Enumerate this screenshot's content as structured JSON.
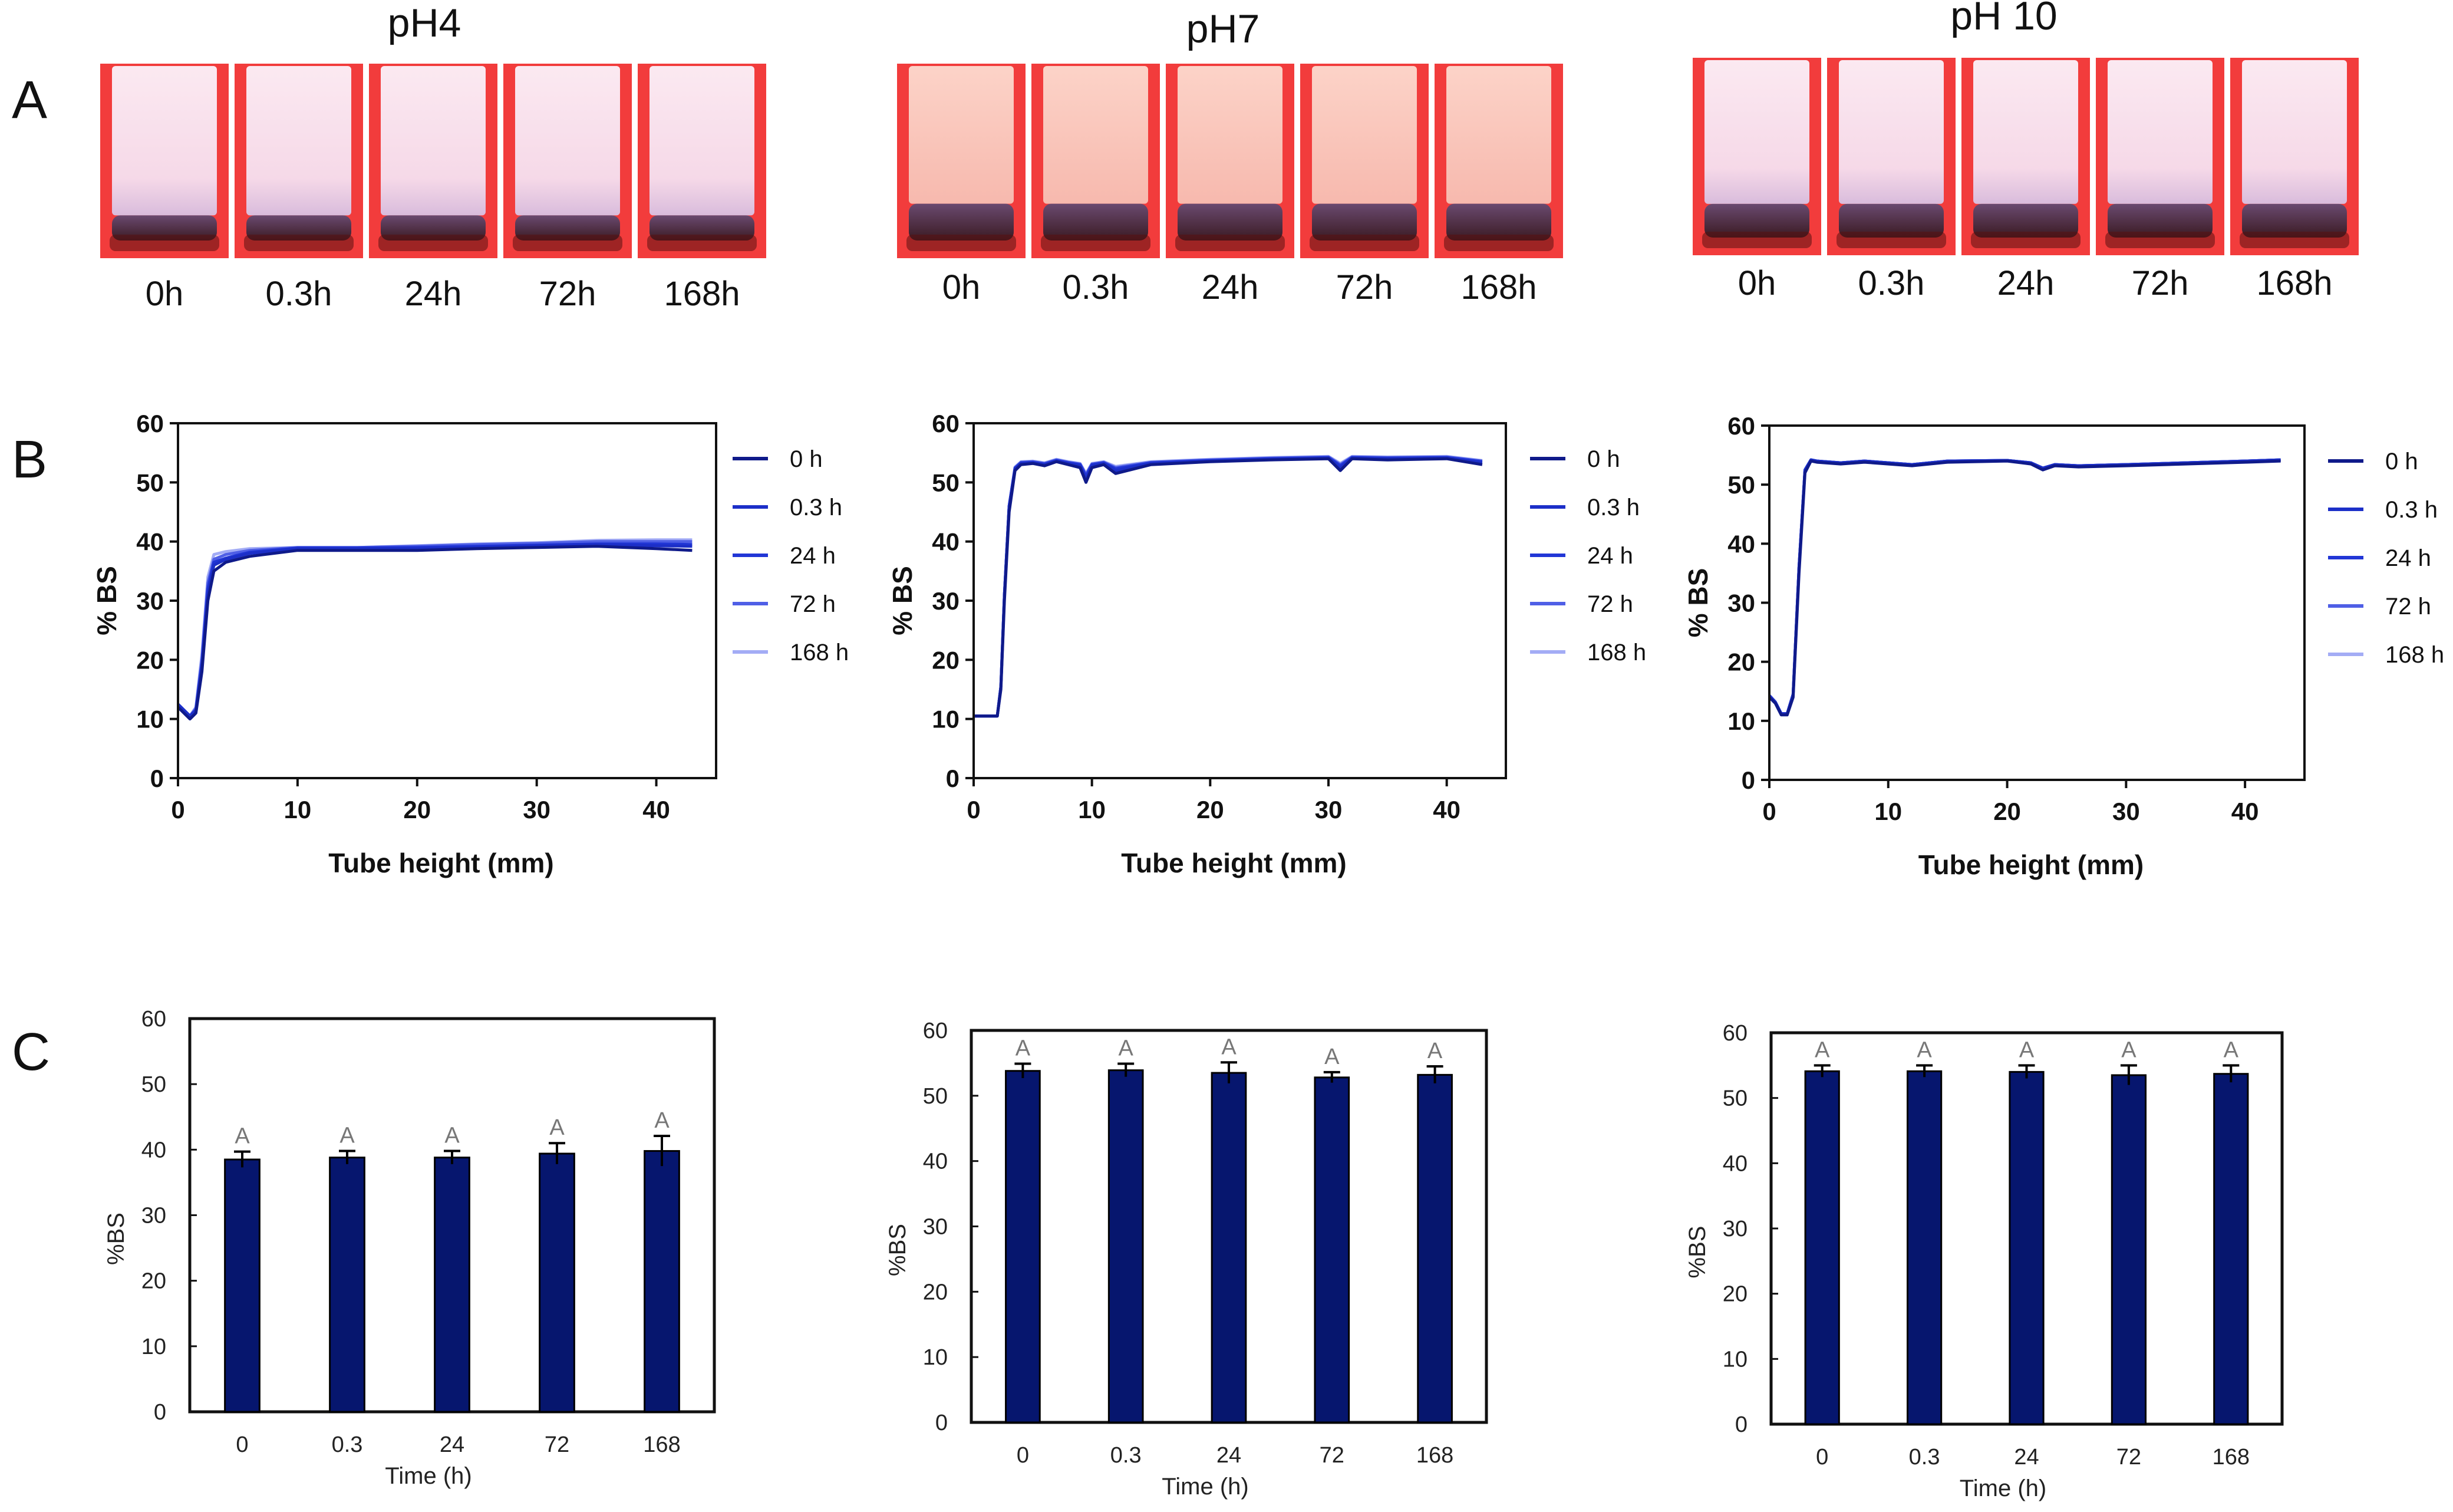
{
  "figure": {
    "row_labels": [
      "A",
      "B",
      "C"
    ],
    "ph_titles": [
      "pH4",
      "pH7",
      "pH 10"
    ],
    "time_labels": [
      "0h",
      "0.3h",
      "24h",
      "72h",
      "168h"
    ]
  },
  "colors": {
    "tube_background": "#f23c3c",
    "bar_fill": "#06166e",
    "legend_series": [
      "#0f1a8a",
      "#1c2fc8",
      "#2136d6",
      "#4f5fe6",
      "#a3acf5"
    ]
  },
  "chart_data": [
    {
      "id": "B1",
      "type": "line",
      "panel": "B",
      "title": "pH4",
      "xlabel": "Tube height (mm)",
      "ylabel": "% BS",
      "xlim": [
        0,
        45
      ],
      "ylim": [
        0,
        60
      ],
      "xticks": [
        0,
        10,
        20,
        30,
        40
      ],
      "yticks": [
        0,
        10,
        20,
        30,
        40,
        50,
        60
      ],
      "legend": [
        "0 h",
        "0.3 h",
        "24 h",
        "72 h",
        "168 h"
      ],
      "series": [
        {
          "name": "0 h",
          "x": [
            0,
            0.5,
            1,
            1.5,
            2,
            2.5,
            3,
            4,
            6,
            10,
            15,
            20,
            25,
            30,
            35,
            40,
            43
          ],
          "y": [
            12,
            11,
            10,
            11,
            18,
            30,
            35,
            36.5,
            37.5,
            38.5,
            38.5,
            38.5,
            38.8,
            39,
            39.2,
            38.8,
            38.5
          ]
        },
        {
          "name": "0.3 h",
          "x": [
            0,
            0.5,
            1,
            1.5,
            2,
            2.5,
            3,
            4,
            6,
            10,
            15,
            20,
            25,
            30,
            35,
            40,
            43
          ],
          "y": [
            12.5,
            11.5,
            10.5,
            11.5,
            19,
            31,
            36,
            37,
            38,
            38.8,
            38.8,
            38.8,
            39,
            39.3,
            39.5,
            39.3,
            39.2
          ]
        },
        {
          "name": "24 h",
          "x": [
            0,
            0.5,
            1,
            1.5,
            2,
            2.5,
            3,
            4,
            6,
            10,
            15,
            20,
            25,
            30,
            35,
            40,
            43
          ],
          "y": [
            12.5,
            11.5,
            10.5,
            11.5,
            19.5,
            32,
            36.5,
            37.2,
            38.2,
            38.9,
            38.9,
            39,
            39.2,
            39.4,
            39.6,
            39.6,
            39.5
          ]
        },
        {
          "name": "72 h",
          "x": [
            0,
            0.5,
            1,
            1.5,
            2,
            2.5,
            3,
            4,
            6,
            10,
            15,
            20,
            25,
            30,
            35,
            40,
            43
          ],
          "y": [
            12.5,
            11.5,
            10.5,
            11.8,
            20,
            33,
            37,
            37.8,
            38.5,
            39,
            39,
            39.2,
            39.5,
            39.7,
            40,
            40,
            40
          ]
        },
        {
          "name": "168 h",
          "x": [
            0,
            0.5,
            1,
            1.5,
            2,
            2.5,
            3,
            4,
            6,
            10,
            15,
            20,
            25,
            30,
            35,
            40,
            43
          ],
          "y": [
            12.5,
            11.5,
            10.5,
            12,
            21,
            34,
            37.8,
            38.3,
            38.8,
            39,
            39,
            39.3,
            39.6,
            39.8,
            40.2,
            40.3,
            40.3
          ]
        }
      ]
    },
    {
      "id": "B2",
      "type": "line",
      "panel": "B",
      "title": "pH7",
      "xlabel": "Tube height (mm)",
      "ylabel": "% BS",
      "xlim": [
        0,
        45
      ],
      "ylim": [
        0,
        60
      ],
      "xticks": [
        0,
        10,
        20,
        30,
        40
      ],
      "yticks": [
        0,
        10,
        20,
        30,
        40,
        50,
        60
      ],
      "legend": [
        "0 h",
        "0.3 h",
        "24 h",
        "72 h",
        "168 h"
      ],
      "series": [
        {
          "name": "0 h",
          "x": [
            0,
            1,
            2,
            2.3,
            2.6,
            3,
            3.5,
            4,
            5,
            6,
            7,
            8,
            9,
            9.5,
            10,
            11,
            12,
            15,
            20,
            25,
            30,
            31,
            32,
            35,
            40,
            43
          ],
          "y": [
            10.5,
            10.5,
            10.5,
            15,
            30,
            45,
            52,
            53,
            53.2,
            52.8,
            53.5,
            53,
            52.5,
            50,
            52.5,
            53,
            51.5,
            53,
            53.5,
            53.8,
            54,
            52,
            54,
            53.8,
            54,
            53
          ]
        },
        {
          "name": "0.3 h",
          "x": [
            0,
            1,
            2,
            2.3,
            2.6,
            3,
            3.5,
            4,
            5,
            6,
            7,
            8,
            9,
            9.5,
            10,
            11,
            12,
            15,
            20,
            25,
            30,
            31,
            32,
            35,
            40,
            43
          ],
          "y": [
            10.5,
            10.5,
            10.5,
            15.5,
            31,
            46,
            52.3,
            53.2,
            53.3,
            53,
            53.6,
            53.2,
            52.8,
            50.5,
            52.8,
            53.2,
            52,
            53.2,
            53.6,
            53.9,
            54.1,
            52.5,
            54.1,
            54,
            54.1,
            53.3
          ]
        },
        {
          "name": "24 h",
          "x": [
            0,
            1,
            2,
            2.3,
            2.6,
            3,
            3.5,
            4,
            5,
            6,
            7,
            8,
            9,
            9.5,
            10,
            11,
            12,
            15,
            20,
            25,
            30,
            31,
            32,
            35,
            40,
            43
          ],
          "y": [
            10.5,
            10.5,
            10.5,
            15.5,
            31,
            46,
            52.4,
            53.3,
            53.4,
            53.1,
            53.7,
            53.3,
            53,
            51,
            53,
            53.3,
            52.3,
            53.3,
            53.7,
            54,
            54.2,
            52.8,
            54.2,
            54.1,
            54.2,
            53.5
          ]
        },
        {
          "name": "72 h",
          "x": [
            0,
            1,
            2,
            2.3,
            2.6,
            3,
            3.5,
            4,
            5,
            6,
            7,
            8,
            9,
            9.5,
            10,
            11,
            12,
            15,
            20,
            25,
            30,
            31,
            32,
            35,
            40,
            43
          ],
          "y": [
            10.5,
            10.5,
            10.5,
            15.5,
            31,
            46,
            52.5,
            53.4,
            53.5,
            53.2,
            53.8,
            53.4,
            53.1,
            51.3,
            53.1,
            53.4,
            52.5,
            53.4,
            53.8,
            54.1,
            54.3,
            53,
            54.3,
            54.2,
            54.3,
            53.6
          ]
        },
        {
          "name": "168 h",
          "x": [
            0,
            1,
            2,
            2.3,
            2.6,
            3,
            3.5,
            4,
            5,
            6,
            7,
            8,
            9,
            9.5,
            10,
            11,
            12,
            15,
            20,
            25,
            30,
            31,
            32,
            35,
            40,
            43
          ],
          "y": [
            10.5,
            10.5,
            10.5,
            15.5,
            31,
            46,
            52.6,
            53.5,
            53.6,
            53.3,
            53.9,
            53.5,
            53.2,
            51.5,
            53.2,
            53.5,
            52.7,
            53.5,
            53.9,
            54.2,
            54.4,
            53.2,
            54.4,
            54.3,
            54.4,
            53.7
          ]
        }
      ]
    },
    {
      "id": "B3",
      "type": "line",
      "panel": "B",
      "title": "pH 10",
      "xlabel": "Tube height (mm)",
      "ylabel": "% BS",
      "xlim": [
        0,
        45
      ],
      "ylim": [
        0,
        60
      ],
      "xticks": [
        0,
        10,
        20,
        30,
        40
      ],
      "yticks": [
        0,
        10,
        20,
        30,
        40,
        50,
        60
      ],
      "legend": [
        "0 h",
        "0.3 h",
        "24 h",
        "72 h",
        "168 h"
      ],
      "series": [
        {
          "name": "0 h",
          "x": [
            0,
            0.5,
            1,
            1.5,
            2,
            2.5,
            3,
            3.5,
            4,
            6,
            8,
            10,
            12,
            15,
            20,
            22,
            23,
            24,
            26,
            30,
            35,
            40,
            43
          ],
          "y": [
            14,
            13,
            11,
            11,
            14,
            35,
            52,
            54,
            53.8,
            53.5,
            53.8,
            53.5,
            53.2,
            53.8,
            54,
            53.5,
            52.5,
            53.2,
            53,
            53.2,
            53.5,
            53.8,
            54
          ]
        },
        {
          "name": "0.3 h",
          "x": [
            0,
            0.5,
            1,
            1.5,
            2,
            2.5,
            3,
            3.5,
            4,
            6,
            8,
            10,
            12,
            15,
            20,
            22,
            23,
            24,
            26,
            30,
            35,
            40,
            43
          ],
          "y": [
            14.3,
            13.2,
            11.2,
            11.2,
            14.5,
            36,
            52.5,
            54.2,
            54,
            53.7,
            54,
            53.7,
            53.4,
            54,
            54.1,
            53.7,
            52.8,
            53.4,
            53.2,
            53.4,
            53.7,
            54,
            54.2
          ]
        },
        {
          "name": "24 h",
          "x": [
            0,
            0.5,
            1,
            1.5,
            2,
            2.5,
            3,
            3.5,
            4,
            6,
            8,
            10,
            12,
            15,
            20,
            22,
            23,
            24,
            26,
            30,
            35,
            40,
            43
          ],
          "y": [
            14.3,
            13.2,
            11.2,
            11.2,
            14.5,
            36,
            52.5,
            54.2,
            54,
            53.7,
            54,
            53.7,
            53.4,
            54,
            54.1,
            53.7,
            52.8,
            53.4,
            53.2,
            53.4,
            53.7,
            54,
            54.2
          ]
        },
        {
          "name": "72 h",
          "x": [
            0,
            0.5,
            1,
            1.5,
            2,
            2.5,
            3,
            3.5,
            4,
            6,
            8,
            10,
            12,
            15,
            20,
            22,
            23,
            24,
            26,
            30,
            35,
            40,
            43
          ],
          "y": [
            14.3,
            13.2,
            11.2,
            11.2,
            14.5,
            36,
            52.5,
            54.2,
            54,
            53.7,
            54,
            53.7,
            53.4,
            54,
            54.1,
            53.7,
            52.8,
            53.4,
            53.2,
            53.4,
            53.7,
            54,
            54.2
          ]
        },
        {
          "name": "168 h",
          "x": [
            0,
            0.5,
            1,
            1.5,
            2,
            2.5,
            3,
            3.5,
            4,
            6,
            8,
            10,
            12,
            15,
            20,
            22,
            23,
            24,
            26,
            30,
            35,
            40,
            43
          ],
          "y": [
            14.3,
            13.2,
            11.2,
            11.2,
            14.5,
            36,
            52.5,
            54.2,
            54,
            53.7,
            54,
            53.7,
            53.4,
            54,
            54.1,
            53.7,
            52.8,
            53.4,
            53.2,
            53.4,
            53.7,
            54,
            54.2
          ]
        }
      ]
    },
    {
      "id": "C1",
      "type": "bar",
      "panel": "C",
      "title": "pH4",
      "xlabel": "Time (h)",
      "ylabel": "%BS",
      "ylim": [
        0,
        60
      ],
      "yticks": [
        0,
        10,
        20,
        30,
        40,
        50,
        60
      ],
      "categories": [
        "0",
        "0.3",
        "24",
        "72",
        "168"
      ],
      "values": [
        38.5,
        38.8,
        38.8,
        39.4,
        39.8
      ],
      "errors": [
        1.2,
        1.0,
        1.0,
        1.6,
        2.3
      ],
      "letters": [
        "A",
        "A",
        "A",
        "A",
        "A"
      ]
    },
    {
      "id": "C2",
      "type": "bar",
      "panel": "C",
      "title": "pH7",
      "xlabel": "Time (h)",
      "ylabel": "%BS",
      "ylim": [
        0,
        60
      ],
      "yticks": [
        0,
        10,
        20,
        30,
        40,
        50,
        60
      ],
      "categories": [
        "0",
        "0.3",
        "24",
        "72",
        "168"
      ],
      "values": [
        53.8,
        53.9,
        53.5,
        52.8,
        53.2
      ],
      "errors": [
        1.1,
        1.0,
        1.6,
        0.8,
        1.3
      ],
      "letters": [
        "A",
        "A",
        "A",
        "A",
        "A"
      ]
    },
    {
      "id": "C3",
      "type": "bar",
      "panel": "C",
      "title": "pH 10",
      "xlabel": "Time (h)",
      "ylabel": "%BS",
      "ylim": [
        0,
        60
      ],
      "yticks": [
        0,
        10,
        20,
        30,
        40,
        50,
        60
      ],
      "categories": [
        "0",
        "0.3",
        "24",
        "72",
        "168"
      ],
      "values": [
        54.1,
        54.1,
        54.0,
        53.5,
        53.7
      ],
      "errors": [
        0.9,
        0.9,
        1.0,
        1.5,
        1.3
      ],
      "letters": [
        "A",
        "A",
        "A",
        "A",
        "A"
      ]
    }
  ]
}
